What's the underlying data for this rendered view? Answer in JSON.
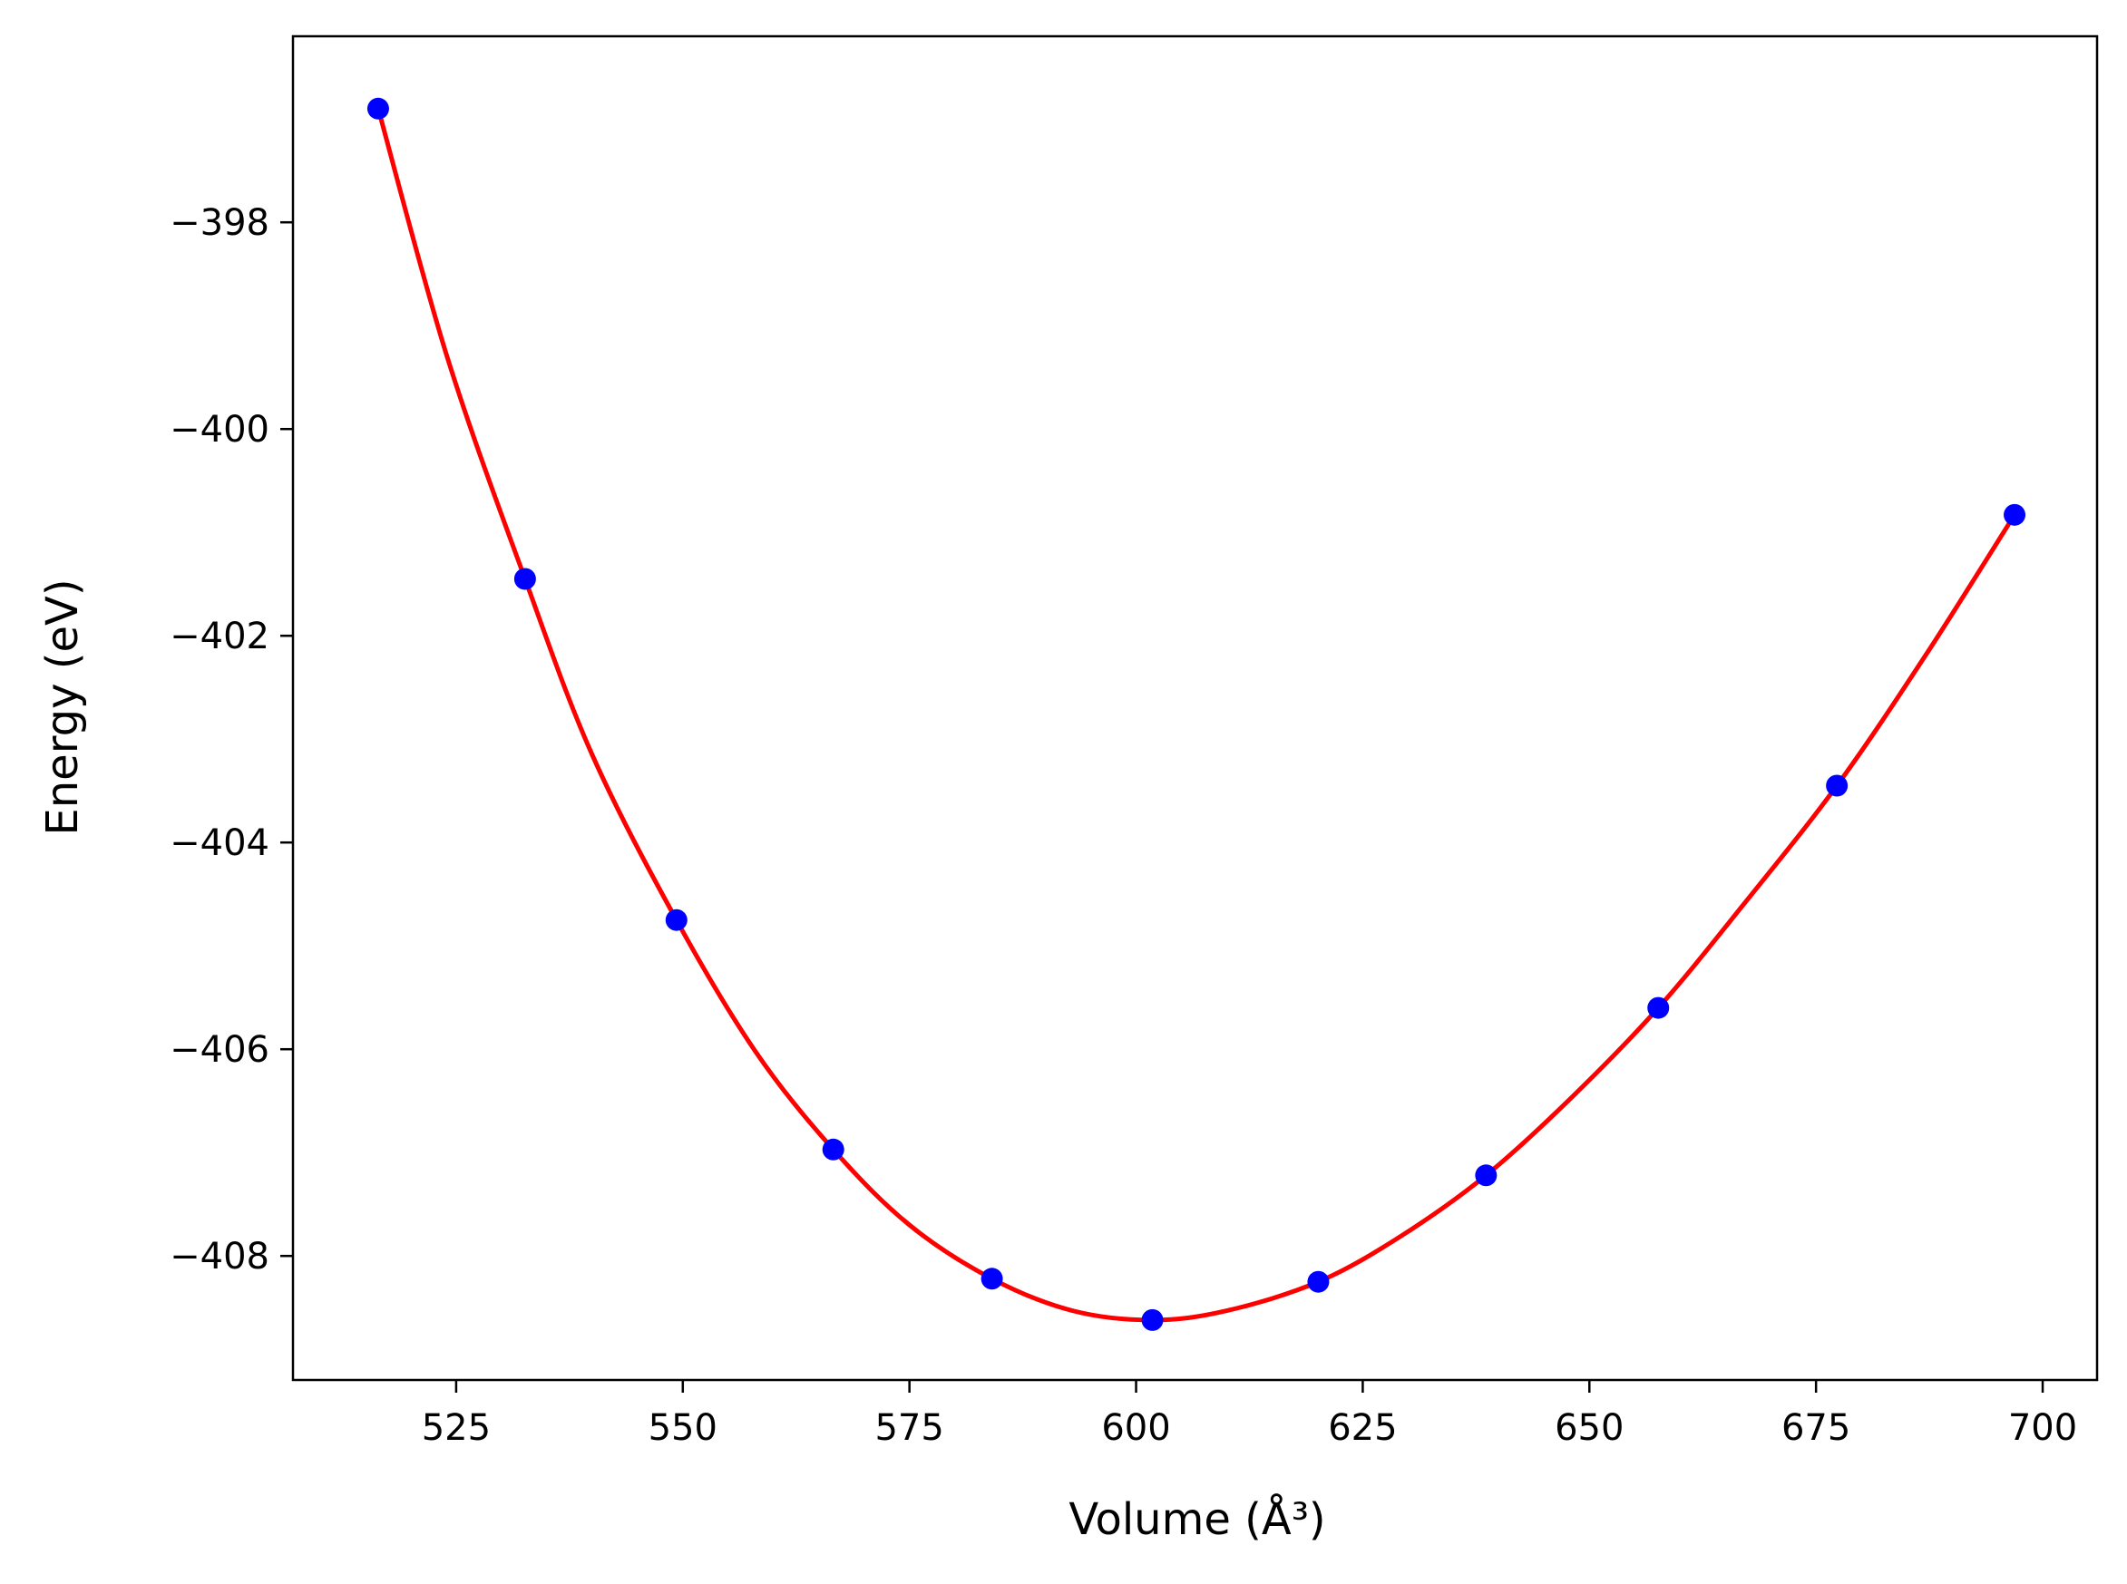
{
  "chart_data": {
    "type": "line",
    "title": "",
    "xlabel": "Volume (Å³)",
    "ylabel": "Energy (eV)",
    "xlim": [
      507,
      706
    ],
    "ylim": [
      -409.2,
      -396.2
    ],
    "xticks": [
      525,
      550,
      575,
      600,
      625,
      650,
      675,
      700
    ],
    "yticks": [
      -398,
      -400,
      -402,
      -404,
      -406,
      -408
    ],
    "xtick_labels": [
      "525",
      "550",
      "575",
      "600",
      "625",
      "650",
      "675",
      "700"
    ],
    "ytick_labels": [
      "−398",
      "−400",
      "−402",
      "−404",
      "−406",
      "−408"
    ],
    "grid": false,
    "legend": "none",
    "series": [
      {
        "kind": "scatter",
        "color": "#0000ff",
        "x": [
          516.4,
          532.6,
          549.3,
          566.6,
          584.1,
          601.8,
          620.1,
          638.6,
          657.6,
          677.3,
          696.9
        ],
        "y": [
          -396.9,
          -401.45,
          -404.75,
          -406.97,
          -408.22,
          -408.62,
          -408.25,
          -407.22,
          -405.6,
          -403.45,
          -400.83
        ]
      },
      {
        "kind": "line",
        "color": "#ff0000",
        "x": [
          516.4,
          524,
          532.6,
          540,
          549.3,
          558,
          566.6,
          575,
          584.1,
          593,
          601.8,
          610,
          620.1,
          629,
          638.6,
          648,
          657.6,
          667,
          677.3,
          687,
          696.9
        ],
        "y": [
          -396.9,
          -399.3,
          -401.45,
          -403.15,
          -404.75,
          -406.02,
          -406.97,
          -407.7,
          -408.22,
          -408.53,
          -408.62,
          -408.53,
          -408.25,
          -407.82,
          -407.22,
          -406.47,
          -405.6,
          -404.6,
          -403.45,
          -402.2,
          -400.83
        ]
      }
    ]
  }
}
